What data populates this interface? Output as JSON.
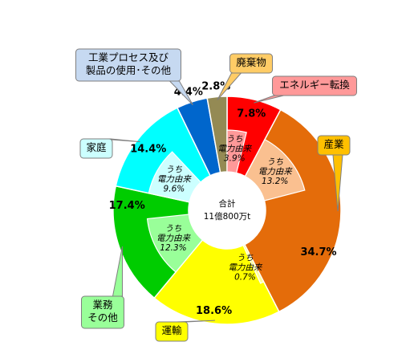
{
  "chart_data": {
    "type": "pie",
    "center_label": {
      "title": "合計",
      "total": "11億800万t"
    },
    "outer_ring": [
      {
        "name": "エネルギー転換",
        "value": 7.8,
        "label": "7.8%",
        "color": "#ff0000"
      },
      {
        "name": "産業",
        "value": 34.7,
        "label": "34.7%",
        "color": "#e46c0a"
      },
      {
        "name": "運輸",
        "value": 18.6,
        "label": "18.6%",
        "color": "#ffff00"
      },
      {
        "name": "業務\nその他",
        "value": 17.4,
        "label": "17.4%",
        "color": "#00cc00"
      },
      {
        "name": "家庭",
        "value": 14.4,
        "label": "14.4%",
        "color": "#00ffff"
      },
      {
        "name": "工業プロセス及び\n製品の使用･その他",
        "value": 4.4,
        "label": "4.4%",
        "color": "#0066cc"
      },
      {
        "name": "廃棄物",
        "value": 2.8,
        "label": "2.8%",
        "color": "#948a54"
      }
    ],
    "inner_ring": [
      {
        "parent": "エネルギー転換",
        "label": "うち\n電力由来",
        "value": 3.9,
        "value_label": "3.9%",
        "color": "#ff9999"
      },
      {
        "parent": "産業",
        "label": "うち\n電力由来",
        "value": 13.2,
        "value_label": "13.2%",
        "color": "#fac090"
      },
      {
        "parent": "運輸",
        "label": "うち\n電力由来",
        "value": 0.7,
        "value_label": "0.7%",
        "color": "#ffff99"
      },
      {
        "parent": "業務\nその他",
        "label": "うち\n電力由来",
        "value": 12.3,
        "value_label": "12.3%",
        "color": "#99ff99"
      },
      {
        "parent": "家庭",
        "label": "うち\n電力由来",
        "value": 9.6,
        "value_label": "9.6%",
        "color": "#ccffff"
      }
    ],
    "callout_colors": {
      "エネルギー転換": "#ff9999",
      "産業": "#ffc000",
      "運輸": "#ffff00",
      "業務\nその他": "#99ff99",
      "家庭": "#ccffff",
      "工業プロセス及び\n製品の使用･その他": "#c6d9f1",
      "廃棄物": "#ffcc66"
    }
  }
}
